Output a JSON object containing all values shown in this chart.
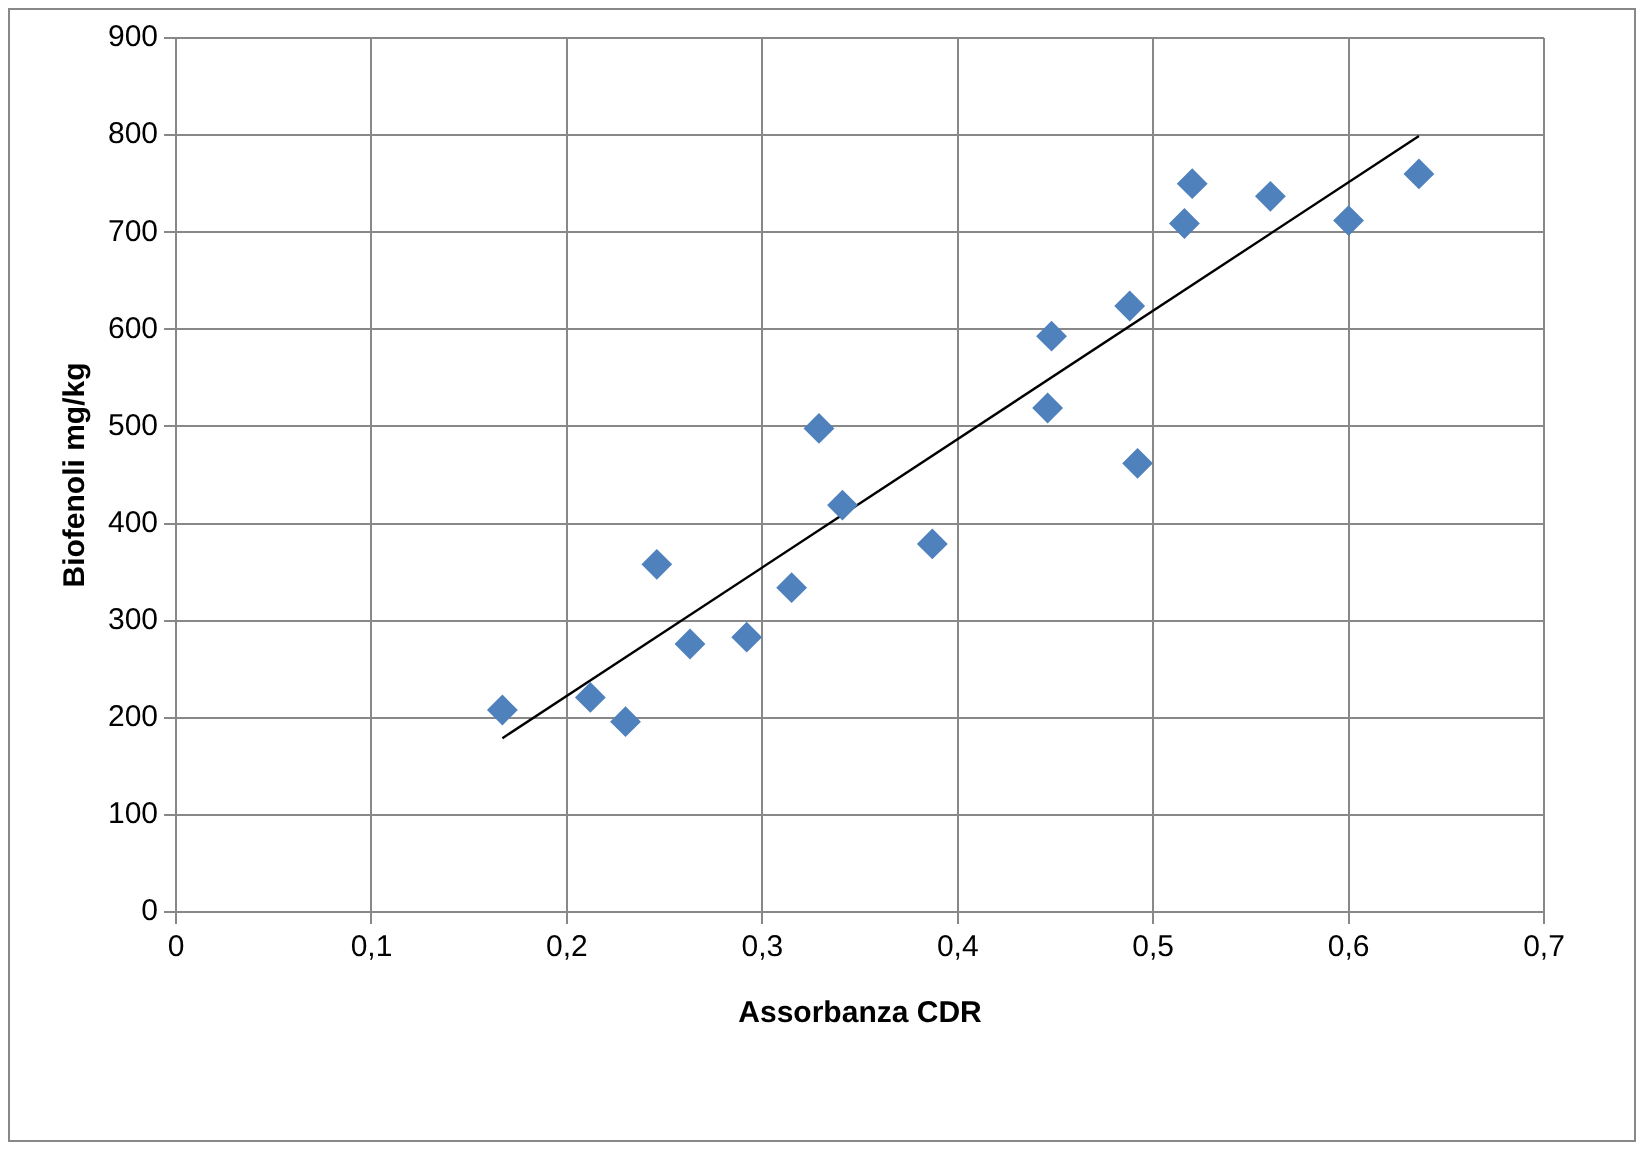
{
  "chart_data": {
    "type": "scatter",
    "xlabel": "Assorbanza CDR",
    "ylabel": "Biofenoli mg/kg",
    "xlim": [
      0,
      0.7
    ],
    "ylim": [
      0,
      900
    ],
    "xticks": [
      0,
      {
        "value": 0.1,
        "label": "0,1"
      },
      {
        "value": 0.2,
        "label": "0,2"
      },
      {
        "value": 0.3,
        "label": "0,3"
      },
      {
        "value": 0.4,
        "label": "0,4"
      },
      {
        "value": 0.5,
        "label": "0,5"
      },
      {
        "value": 0.6,
        "label": "0,6"
      },
      {
        "value": 0.7,
        "label": "0,7"
      }
    ],
    "yticks": [
      0,
      100,
      200,
      300,
      400,
      500,
      600,
      700,
      800,
      900
    ],
    "grid": true,
    "legend": false,
    "marker": "diamond",
    "series": [
      {
        "type": "scatter",
        "color": "#4f81bd",
        "x": [
          0.167,
          0.212,
          0.23,
          0.246,
          0.263,
          0.292,
          0.315,
          0.329,
          0.341,
          0.387,
          0.446,
          0.448,
          0.488,
          0.492,
          0.516,
          0.52,
          0.56,
          0.6,
          0.636
        ],
        "values": [
          208,
          221,
          196,
          358,
          276,
          283,
          334,
          498,
          419,
          379,
          519,
          593,
          624,
          462,
          709,
          750,
          737,
          712,
          760
        ]
      },
      {
        "type": "line",
        "color": "#000000",
        "marker": "none",
        "x": [
          0.167,
          0.636
        ],
        "values": [
          179,
          799
        ]
      }
    ]
  }
}
